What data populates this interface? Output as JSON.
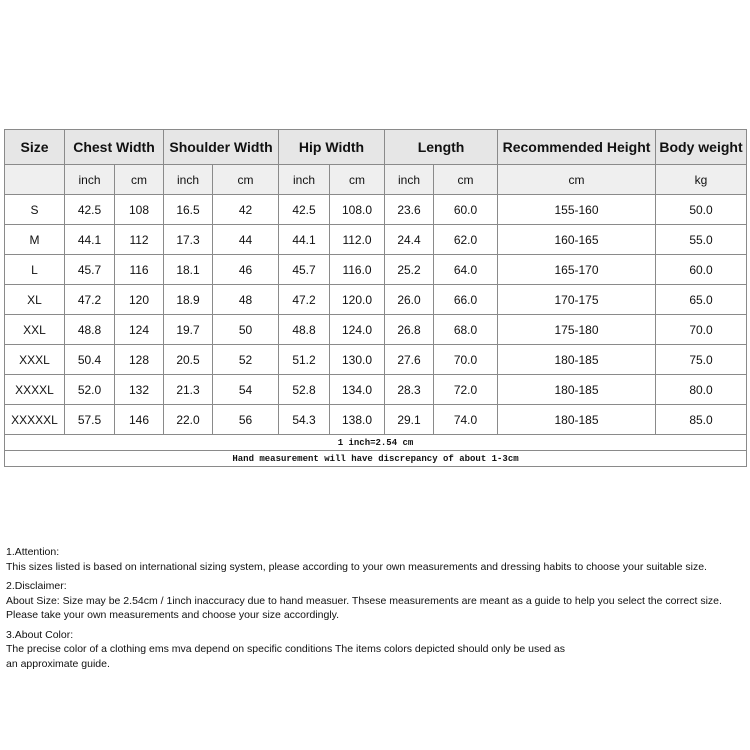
{
  "table": {
    "headers": [
      "Size",
      "Chest Width",
      "Shoulder Width",
      "Hip Width",
      "Length",
      "Recommended Height",
      "Body weight"
    ],
    "units": [
      "",
      "inch",
      "cm",
      "inch",
      "cm",
      "inch",
      "cm",
      "inch",
      "cm",
      "cm",
      "kg"
    ],
    "rows": [
      [
        "S",
        "42.5",
        "108",
        "16.5",
        "42",
        "42.5",
        "108.0",
        "23.6",
        "60.0",
        "155-160",
        "50.0"
      ],
      [
        "M",
        "44.1",
        "112",
        "17.3",
        "44",
        "44.1",
        "112.0",
        "24.4",
        "62.0",
        "160-165",
        "55.0"
      ],
      [
        "L",
        "45.7",
        "116",
        "18.1",
        "46",
        "45.7",
        "116.0",
        "25.2",
        "64.0",
        "165-170",
        "60.0"
      ],
      [
        "XL",
        "47.2",
        "120",
        "18.9",
        "48",
        "47.2",
        "120.0",
        "26.0",
        "66.0",
        "170-175",
        "65.0"
      ],
      [
        "XXL",
        "48.8",
        "124",
        "19.7",
        "50",
        "48.8",
        "124.0",
        "26.8",
        "68.0",
        "175-180",
        "70.0"
      ],
      [
        "XXXL",
        "50.4",
        "128",
        "20.5",
        "52",
        "51.2",
        "130.0",
        "27.6",
        "70.0",
        "180-185",
        "75.0"
      ],
      [
        "XXXXL",
        "52.0",
        "132",
        "21.3",
        "54",
        "52.8",
        "134.0",
        "28.3",
        "72.0",
        "180-185",
        "80.0"
      ],
      [
        "XXXXXL",
        "57.5",
        "146",
        "22.0",
        "56",
        "54.3",
        "138.0",
        "29.1",
        "74.0",
        "180-185",
        "85.0"
      ]
    ],
    "conversion_note": "1 inch=2.54 cm",
    "measurement_note": "Hand measurement will have discrepancy of about 1-3cm"
  },
  "notes": [
    {
      "title": "1.Attention:",
      "lines": [
        "This sizes listed is based on international sizing system, please according to your own measurements and dressing habits to choose your suitable size."
      ]
    },
    {
      "title": "2.Disclaimer:",
      "lines": [
        "About Size: Size may be 2.54cm / 1inch inaccuracy due to hand measuer. Thsese measurements are meant as a guide to help you select the correct size.",
        "Please take your own measurements and choose your size accordingly."
      ]
    },
    {
      "title": "3.About Color:",
      "lines": [
        "The precise color of a clothing ems mva depend on specific conditions The items colors depicted should only be used as",
        "an approximate guide."
      ]
    }
  ]
}
